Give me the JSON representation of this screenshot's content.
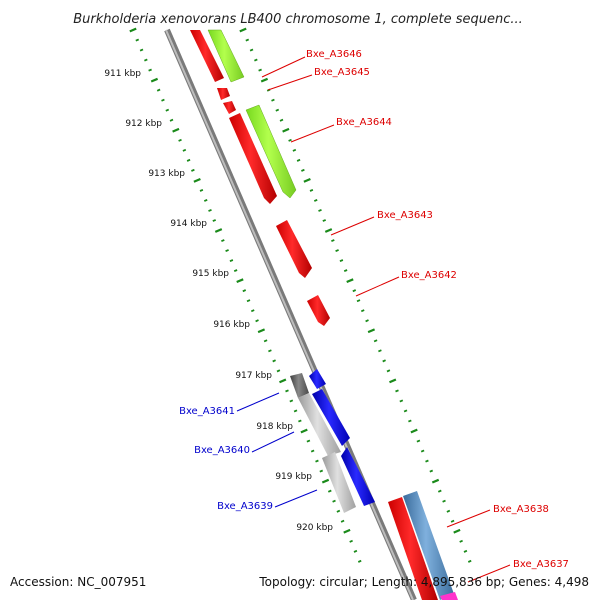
{
  "title": "Burkholderia xenovorans LB400 chromosome 1, complete sequenc...",
  "accession": "Accession: NC_007951",
  "topology": "Topology: circular; Length: 4,895,836 bp; Genes: 4,498",
  "colors": {
    "red": "#ff1a1a",
    "blue": "#1a1aff",
    "green": "#99ff33",
    "gray": "#b0b0b0",
    "dark_gray": "#606060",
    "steel_blue": "#5b8fc4",
    "magenta": "#ff33cc",
    "backbone": "#8c8c8c",
    "tick_green": "#1a8a1a",
    "red_label": "#dd0000",
    "blue_label": "#0000cc"
  },
  "scale_labels": [
    "911 kbp",
    "912 kbp",
    "913 kbp",
    "914 kbp",
    "915 kbp",
    "916 kbp",
    "917 kbp",
    "918 kbp",
    "919 kbp",
    "920 kbp"
  ],
  "gene_labels": [
    {
      "text": "Bxe_A3646",
      "color": "red"
    },
    {
      "text": "Bxe_A3645",
      "color": "red"
    },
    {
      "text": "Bxe_A3644",
      "color": "red"
    },
    {
      "text": "Bxe_A3643",
      "color": "red"
    },
    {
      "text": "Bxe_A3642",
      "color": "red"
    },
    {
      "text": "Bxe_A3641",
      "color": "blue"
    },
    {
      "text": "Bxe_A3640",
      "color": "blue"
    },
    {
      "text": "Bxe_A3639",
      "color": "blue"
    },
    {
      "text": "Bxe_A3638",
      "color": "red"
    },
    {
      "text": "Bxe_A3637",
      "color": "red"
    }
  ]
}
